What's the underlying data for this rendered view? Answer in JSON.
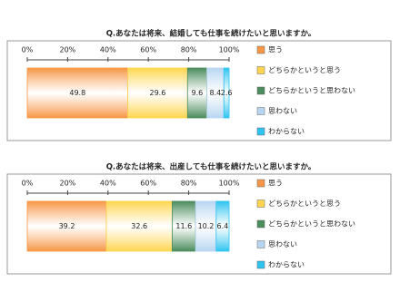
{
  "chart_data": [
    {
      "type": "stacked-bar",
      "title": "Q.あなたは将来、結婚しても仕事を続けたいと思いますか。",
      "xlim": [
        0,
        100
      ],
      "xticks": [
        {
          "value": 0,
          "label": "0%"
        },
        {
          "value": 20,
          "label": "20%"
        },
        {
          "value": 40,
          "label": "40%"
        },
        {
          "value": 60,
          "label": "60%"
        },
        {
          "value": 80,
          "label": "80%"
        },
        {
          "value": 100,
          "label": "100%"
        }
      ],
      "legend": "right",
      "series": [
        {
          "name": "思う",
          "color": "#f79646",
          "values": [
            49.8
          ]
        },
        {
          "name": "どちらかというと思う",
          "color": "#ffd54f",
          "values": [
            29.6
          ]
        },
        {
          "name": "どちらかというと思わない",
          "color": "#4a8c5c",
          "values": [
            9.6
          ]
        },
        {
          "name": "思わない",
          "color": "#b8d6f2",
          "values": [
            8.4
          ]
        },
        {
          "name": "わからない",
          "color": "#2fc4f0",
          "values": [
            2.6
          ]
        }
      ]
    },
    {
      "type": "stacked-bar",
      "title": "Q.あなたは将来、出産しても仕事を続けたいと思いますか。",
      "xlim": [
        0,
        100
      ],
      "xticks": [
        {
          "value": 0,
          "label": "0%"
        },
        {
          "value": 20,
          "label": "20%"
        },
        {
          "value": 40,
          "label": "40%"
        },
        {
          "value": 60,
          "label": "60%"
        },
        {
          "value": 80,
          "label": "80%"
        },
        {
          "value": 100,
          "label": "100%"
        }
      ],
      "legend": "right",
      "series": [
        {
          "name": "思う",
          "color": "#f79646",
          "values": [
            39.2
          ]
        },
        {
          "name": "どちらかというと思う",
          "color": "#ffd54f",
          "values": [
            32.6
          ]
        },
        {
          "name": "どちらかというと思わない",
          "color": "#4a8c5c",
          "values": [
            11.6
          ]
        },
        {
          "name": "思わない",
          "color": "#b8d6f2",
          "values": [
            10.2
          ]
        },
        {
          "name": "わからない",
          "color": "#2fc4f0",
          "values": [
            6.4
          ]
        }
      ]
    }
  ]
}
